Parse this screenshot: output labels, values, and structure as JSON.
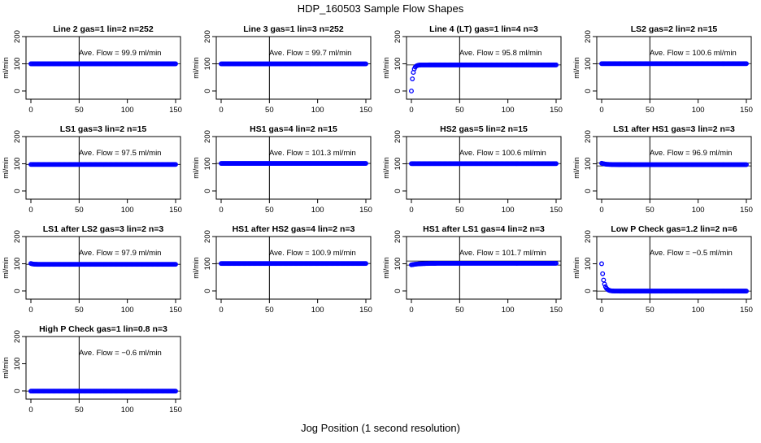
{
  "page": {
    "title": "HDP_160503  Sample Flow Shapes",
    "xlabel": "Jog Position (1 second resolution)"
  },
  "chart_data": [
    {
      "type": "scatter",
      "title": "Line 2 gas=1 lin=2 n=252",
      "annotation": "Ave. Flow = 99.9  ml/min",
      "ylabel": "ml/min",
      "xlim": [
        0,
        150
      ],
      "ylim": [
        -30,
        200
      ],
      "xticks": [
        0,
        50,
        100,
        150
      ],
      "yticks": [
        0,
        100,
        200
      ],
      "vline": 50,
      "hlines": [
        99.9
      ],
      "shape": {
        "kind": "flat",
        "level": 99.9
      }
    },
    {
      "type": "scatter",
      "title": "Line 3 gas=1 lin=3 n=252",
      "annotation": "Ave. Flow = 99.7  ml/min",
      "ylabel": "ml/min",
      "xlim": [
        0,
        150
      ],
      "ylim": [
        -30,
        200
      ],
      "xticks": [
        0,
        50,
        100,
        150
      ],
      "yticks": [
        0,
        100,
        200
      ],
      "vline": 50,
      "hlines": [
        99.7
      ],
      "shape": {
        "kind": "flat",
        "level": 99.7
      }
    },
    {
      "type": "scatter",
      "title": "Line 4 (LT) gas=1 lin=4 n=3",
      "annotation": "Ave. Flow = 95.8  ml/min",
      "ylabel": "ml/min",
      "xlim": [
        0,
        150
      ],
      "ylim": [
        -30,
        200
      ],
      "xticks": [
        0,
        50,
        100,
        150
      ],
      "yticks": [
        0,
        100,
        200
      ],
      "vline": 50,
      "hlines": [
        95.8
      ],
      "shape": {
        "kind": "rise",
        "level": 95.8,
        "start": 0,
        "tau": 1.6
      }
    },
    {
      "type": "scatter",
      "title": "LS2 gas=2 lin=2 n=15",
      "annotation": "Ave. Flow = 100.6  ml/min",
      "ylabel": "ml/min",
      "xlim": [
        0,
        150
      ],
      "ylim": [
        -30,
        200
      ],
      "xticks": [
        0,
        50,
        100,
        150
      ],
      "yticks": [
        0,
        100,
        200
      ],
      "vline": 50,
      "hlines": [
        100.6
      ],
      "shape": {
        "kind": "flat",
        "level": 100.6
      }
    },
    {
      "type": "scatter",
      "title": "LS1 gas=3 lin=2 n=15",
      "annotation": "Ave. Flow = 97.5  ml/min",
      "ylabel": "ml/min",
      "xlim": [
        0,
        150
      ],
      "ylim": [
        -30,
        200
      ],
      "xticks": [
        0,
        50,
        100,
        150
      ],
      "yticks": [
        0,
        100,
        200
      ],
      "vline": 50,
      "hlines": [
        97.5
      ],
      "shape": {
        "kind": "flat",
        "level": 97.5
      }
    },
    {
      "type": "scatter",
      "title": "HS1 gas=4 lin=2 n=15",
      "annotation": "Ave. Flow = 101.3  ml/min",
      "ylabel": "ml/min",
      "xlim": [
        0,
        150
      ],
      "ylim": [
        -30,
        200
      ],
      "xticks": [
        0,
        50,
        100,
        150
      ],
      "yticks": [
        0,
        100,
        200
      ],
      "vline": 50,
      "hlines": [
        101.3
      ],
      "shape": {
        "kind": "flat",
        "level": 101.3
      }
    },
    {
      "type": "scatter",
      "title": "HS2 gas=5 lin=2 n=15",
      "annotation": "Ave. Flow = 100.6  ml/min",
      "ylabel": "ml/min",
      "xlim": [
        0,
        150
      ],
      "ylim": [
        -30,
        200
      ],
      "xticks": [
        0,
        50,
        100,
        150
      ],
      "yticks": [
        0,
        100,
        200
      ],
      "vline": 50,
      "hlines": [
        100.6
      ],
      "shape": {
        "kind": "flat",
        "level": 100.6
      }
    },
    {
      "type": "scatter",
      "title": "LS1 after HS1 gas=3 lin=2 n=3",
      "annotation": "Ave. Flow = 96.9  ml/min",
      "ylabel": "ml/min",
      "xlim": [
        0,
        150
      ],
      "ylim": [
        -30,
        200
      ],
      "xticks": [
        0,
        50,
        100,
        150
      ],
      "yticks": [
        0,
        100,
        200
      ],
      "vline": 50,
      "hlines": [
        92,
        103
      ],
      "shape": {
        "kind": "decay",
        "level": 96.9,
        "start": 102,
        "tau": 4
      }
    },
    {
      "type": "scatter",
      "title": "LS1 after LS2 gas=3 lin=2 n=3",
      "annotation": "Ave. Flow = 97.9  ml/min",
      "ylabel": "ml/min",
      "xlim": [
        0,
        150
      ],
      "ylim": [
        -30,
        200
      ],
      "xticks": [
        0,
        50,
        100,
        150
      ],
      "yticks": [
        0,
        100,
        200
      ],
      "vline": 50,
      "hlines": [
        97.9
      ],
      "shape": {
        "kind": "decay",
        "level": 97.9,
        "start": 101,
        "tau": 2
      }
    },
    {
      "type": "scatter",
      "title": "HS1 after HS2 gas=4 lin=2 n=3",
      "annotation": "Ave. Flow = 100.9  ml/min",
      "ylabel": "ml/min",
      "xlim": [
        0,
        150
      ],
      "ylim": [
        -30,
        200
      ],
      "xticks": [
        0,
        50,
        100,
        150
      ],
      "yticks": [
        0,
        100,
        200
      ],
      "vline": 50,
      "hlines": [
        100.9
      ],
      "shape": {
        "kind": "flat",
        "level": 100.9
      }
    },
    {
      "type": "scatter",
      "title": "HS1 after LS1 gas=4 lin=2 n=3",
      "annotation": "Ave. Flow = 101.7  ml/min",
      "ylabel": "ml/min",
      "xlim": [
        0,
        150
      ],
      "ylim": [
        -30,
        200
      ],
      "xticks": [
        0,
        50,
        100,
        150
      ],
      "yticks": [
        0,
        100,
        200
      ],
      "vline": 50,
      "hlines": [
        95,
        110
      ],
      "shape": {
        "kind": "rise",
        "level": 101.7,
        "start": 96,
        "tau": 8
      }
    },
    {
      "type": "scatter",
      "title": "Low P Check gas=1.2 lin=2 n=6",
      "annotation": "Ave. Flow = −0.5  ml/min",
      "ylabel": "ml/min",
      "xlim": [
        0,
        150
      ],
      "ylim": [
        -30,
        200
      ],
      "xticks": [
        0,
        50,
        100,
        150
      ],
      "yticks": [
        0,
        100,
        200
      ],
      "vline": 50,
      "hlines": [
        -0.5
      ],
      "shape": {
        "kind": "decay",
        "level": -0.5,
        "start": 100,
        "tau": 2.2
      }
    },
    {
      "type": "scatter",
      "title": "High P Check gas=1 lin=0.8 n=3",
      "annotation": "Ave. Flow = −0.6  ml/min",
      "ylabel": "ml/min",
      "xlim": [
        0,
        150
      ],
      "ylim": [
        -30,
        200
      ],
      "xticks": [
        0,
        50,
        100,
        150
      ],
      "yticks": [
        0,
        100,
        200
      ],
      "vline": 50,
      "hlines": [
        -0.6
      ],
      "shape": {
        "kind": "flat",
        "level": -0.6
      }
    }
  ],
  "colors": {
    "points": "#0000ff",
    "axes": "#000000",
    "background": "#ffffff"
  }
}
